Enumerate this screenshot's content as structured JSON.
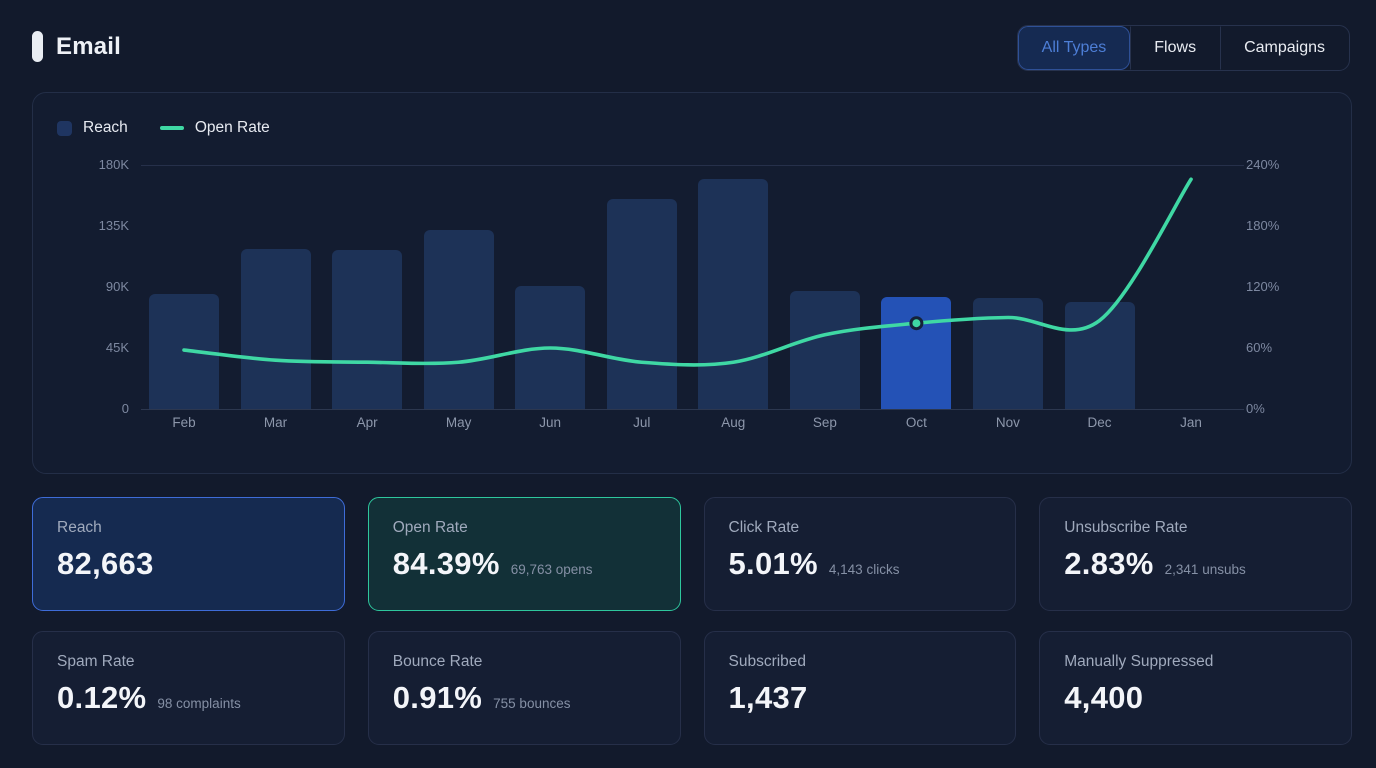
{
  "header": {
    "title": "Email",
    "tabs": [
      {
        "label": "All Types",
        "active": true
      },
      {
        "label": "Flows",
        "active": false
      },
      {
        "label": "Campaigns",
        "active": false
      }
    ]
  },
  "chart": {
    "legend": [
      {
        "label": "Reach",
        "type": "bar",
        "color": "#1f3561"
      },
      {
        "label": "Open Rate",
        "type": "line",
        "color": "#3fd8a4"
      }
    ]
  },
  "chart_data": {
    "type": "bar+line",
    "categories": [
      "Feb",
      "Mar",
      "Apr",
      "May",
      "Jun",
      "Jul",
      "Aug",
      "Sep",
      "Oct",
      "Nov",
      "Dec",
      "Jan"
    ],
    "series": [
      {
        "name": "Reach",
        "type": "bar",
        "axis": "left",
        "values": [
          85000,
          118000,
          117000,
          132000,
          91000,
          155000,
          170000,
          87000,
          82663,
          82000,
          79000,
          0
        ],
        "highlight_index": 8
      },
      {
        "name": "Open Rate",
        "type": "line",
        "axis": "right",
        "values": [
          58,
          48,
          46,
          46,
          60,
          46,
          46,
          73,
          84.39,
          90,
          87,
          226
        ],
        "highlight_index": 8
      }
    ],
    "left_axis": {
      "ticks": [
        "180K",
        "135K",
        "90K",
        "45K",
        "0"
      ],
      "max": 180000,
      "min": 0
    },
    "right_axis": {
      "ticks": [
        "240%",
        "180%",
        "120%",
        "60%",
        "0%"
      ],
      "max": 240,
      "min": 0
    },
    "grid": "top-and-baseline-only",
    "legend_position": "top-left",
    "colors": {
      "bar": "#1d3257",
      "bar_highlight": "#2452b6",
      "line": "#3fd8a4",
      "dot_ring": "#152238"
    }
  },
  "cards": [
    {
      "label": "Reach",
      "value": "82,663",
      "accent": "blue",
      "accent_color": "#3e6cd8"
    },
    {
      "label": "Open Rate",
      "value": "84.39%",
      "sub": "69,763 opens",
      "accent": "teal",
      "accent_color": "#2ec79d"
    },
    {
      "label": "Click Rate",
      "value": "5.01%",
      "sub": "4,143 clicks",
      "accent": null
    },
    {
      "label": "Unsubscribe Rate",
      "value": "2.83%",
      "sub": "2,341 unsubs",
      "accent": null
    },
    {
      "label": "Spam Rate",
      "value": "0.12%",
      "sub": "98 complaints",
      "accent": null
    },
    {
      "label": "Bounce Rate",
      "value": "0.91%",
      "sub": "755 bounces",
      "accent": null
    },
    {
      "label": "Subscribed",
      "value": "1,437",
      "accent": null
    },
    {
      "label": "Manually Suppressed",
      "value": "4,400",
      "accent": null
    }
  ]
}
